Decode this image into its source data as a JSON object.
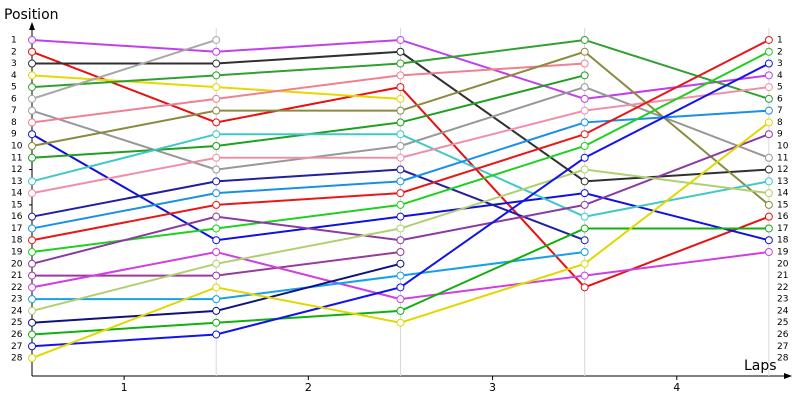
{
  "chart_data": {
    "type": "line",
    "y_label": "Position",
    "x_label": "Laps",
    "x": [
      0,
      1,
      2,
      3,
      4
    ],
    "xlim": [
      0,
      4.12
    ],
    "ylim": [
      29.5,
      0
    ],
    "xticks": [
      {
        "value": 0.5,
        "label": "1"
      },
      {
        "value": 1.5,
        "label": "2"
      },
      {
        "value": 2.5,
        "label": "3"
      },
      {
        "value": 3.5,
        "label": "4"
      }
    ],
    "yticks": [
      1,
      2,
      3,
      4,
      5,
      6,
      7,
      8,
      9,
      10,
      11,
      12,
      13,
      14,
      15,
      16,
      17,
      18,
      19,
      20,
      21,
      22,
      23,
      24,
      25,
      26,
      27,
      28
    ],
    "series": [
      {
        "color": "#c040f0",
        "values": [
          1,
          2,
          1,
          6,
          4
        ]
      },
      {
        "color": "#e81010",
        "values": [
          2,
          8,
          5,
          22,
          16
        ]
      },
      {
        "color": "#303030",
        "values": [
          3,
          3,
          2,
          13,
          12
        ]
      },
      {
        "color": "#e8d800",
        "values": [
          4,
          5,
          6,
          null,
          null
        ]
      },
      {
        "color": "#30a030",
        "values": [
          5,
          4,
          3,
          1,
          6
        ]
      },
      {
        "color": "#a8a8a8",
        "values": [
          6,
          1,
          null,
          null,
          null
        ]
      },
      {
        "color": "#989898",
        "values": [
          7,
          12,
          10,
          5,
          11
        ]
      },
      {
        "color": "#f08090",
        "values": [
          8,
          6,
          4,
          3,
          null
        ]
      },
      {
        "color": "#1010e0",
        "values": [
          9,
          18,
          16,
          14,
          18
        ]
      },
      {
        "color": "#8a8a40",
        "values": [
          10,
          7,
          7,
          2,
          15
        ]
      },
      {
        "color": "#20a020",
        "values": [
          11,
          10,
          8,
          4,
          null
        ]
      },
      {
        "color": "#40c8c8",
        "values": [
          13,
          9,
          9,
          16,
          13
        ]
      },
      {
        "color": "#f090a8",
        "values": [
          14,
          11,
          11,
          7,
          5
        ]
      },
      {
        "color": "#2020a0",
        "values": [
          16,
          13,
          12,
          18,
          null
        ]
      },
      {
        "color": "#1890e8",
        "values": [
          17,
          14,
          13,
          8,
          7
        ]
      },
      {
        "color": "#e81818",
        "values": [
          18,
          15,
          14,
          9,
          1
        ]
      },
      {
        "color": "#20d020",
        "values": [
          19,
          17,
          15,
          10,
          2
        ]
      },
      {
        "color": "#8a3aa0",
        "values": [
          20,
          16,
          18,
          15,
          9
        ]
      },
      {
        "color": "#9a3a9a",
        "values": [
          21,
          21,
          19,
          null,
          null
        ]
      },
      {
        "color": "#d040e0",
        "values": [
          22,
          19,
          23,
          21,
          19
        ]
      },
      {
        "color": "#18a0e8",
        "values": [
          23,
          23,
          21,
          19,
          null
        ]
      },
      {
        "color": "#b0d070",
        "values": [
          24,
          20,
          17,
          12,
          14
        ]
      },
      {
        "color": "#101080",
        "values": [
          25,
          24,
          20,
          null,
          null
        ]
      },
      {
        "color": "#10b010",
        "values": [
          26,
          25,
          24,
          17,
          17
        ]
      },
      {
        "color": "#1414e8",
        "values": [
          27,
          26,
          22,
          11,
          3
        ]
      },
      {
        "color": "#e0d800",
        "values": [
          28,
          22,
          25,
          20,
          8
        ]
      }
    ]
  }
}
